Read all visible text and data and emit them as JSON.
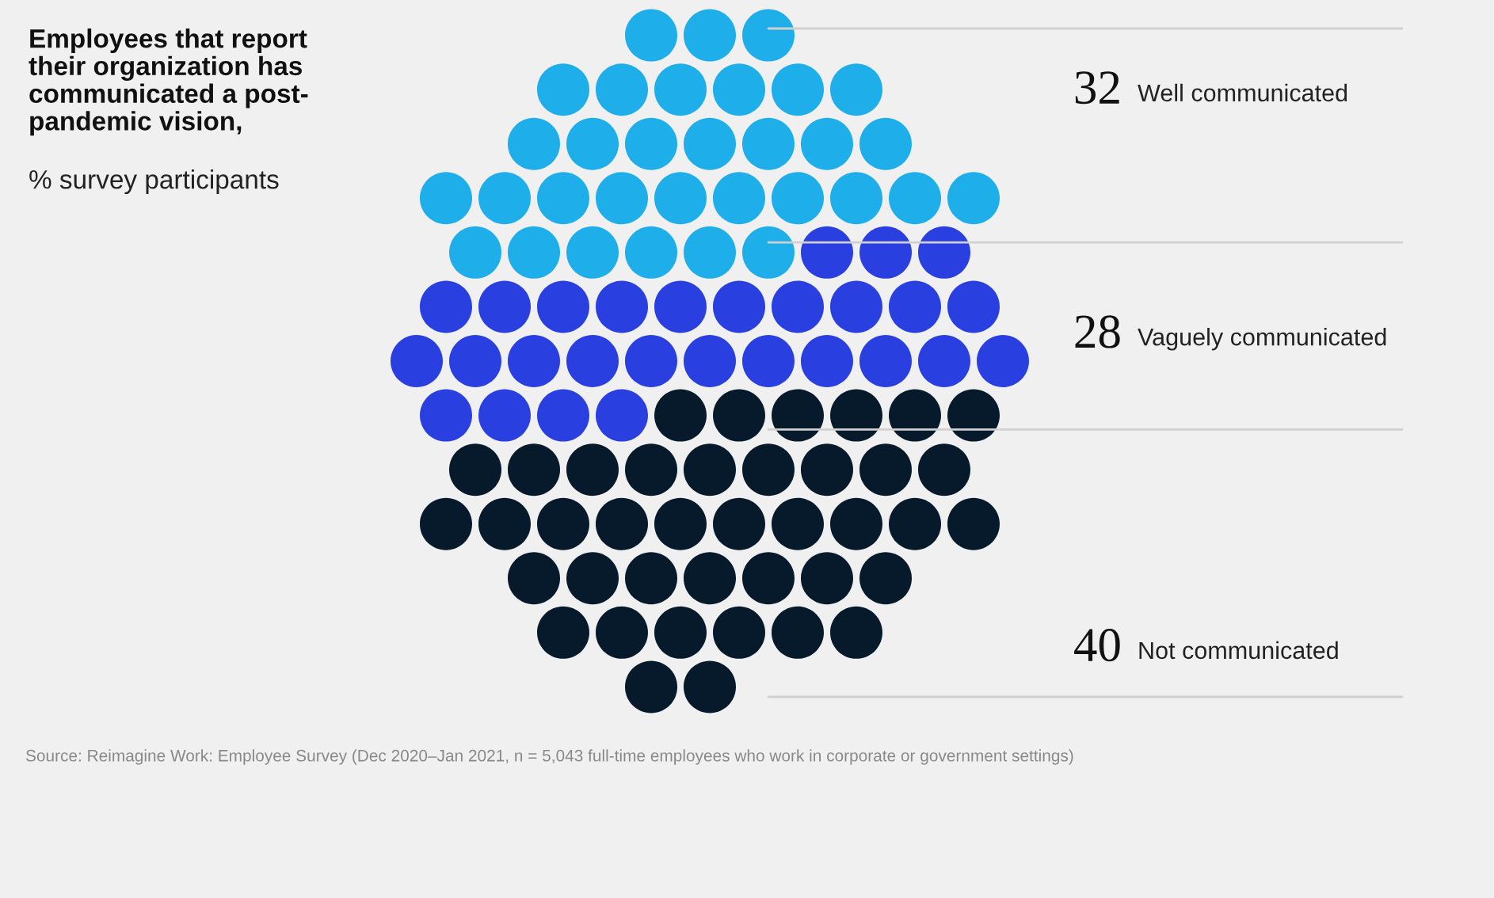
{
  "chart_data": {
    "type": "other",
    "title": "Employees that report\ntheir organization has\ncommunicated a post-\npandemic vision,",
    "subtitle": "% survey participants",
    "categories": [
      "Well communicated",
      "Vaguely communicated",
      "Not communicated"
    ],
    "values": [
      32,
      28,
      40
    ],
    "data_labels": true,
    "colors": [
      "#1eaeea",
      "#2a3fe0",
      "#061a2b"
    ],
    "annotations": [
      "Source: Reimagine Work: Employee Survey (Dec 2020–Jan 2021, n = 5,043 full-time employees who work in corporate or government settings)"
    ]
  }
}
